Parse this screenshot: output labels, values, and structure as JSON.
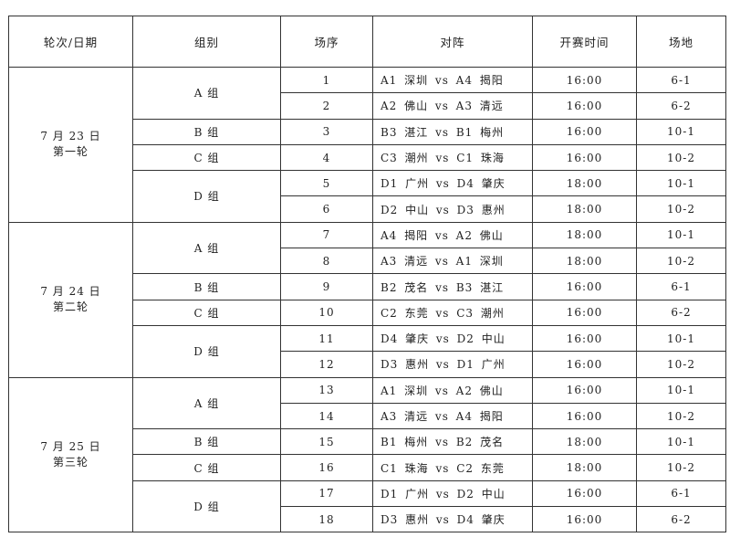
{
  "headers": [
    "轮次/日期",
    "组别",
    "场序",
    "对阵",
    "开赛时间",
    "场地"
  ],
  "rounds": [
    {
      "date": "7 月 23 日",
      "round": "第一轮",
      "groups": [
        {
          "group": "A 组",
          "matches": [
            {
              "no": "1",
              "match": "A1 深圳 vs A4 揭阳",
              "time": "16:00",
              "venue": "6-1"
            },
            {
              "no": "2",
              "match": "A2 佛山 vs A3 清远",
              "time": "16:00",
              "venue": "6-2"
            }
          ]
        },
        {
          "group": "B 组",
          "matches": [
            {
              "no": "3",
              "match": "B3 湛江 vs B1 梅州",
              "time": "16:00",
              "venue": "10-1"
            }
          ]
        },
        {
          "group": "C 组",
          "matches": [
            {
              "no": "4",
              "match": "C3 潮州 vs C1 珠海",
              "time": "16:00",
              "venue": "10-2"
            }
          ]
        },
        {
          "group": "D 组",
          "matches": [
            {
              "no": "5",
              "match": "D1 广州 vs D4 肇庆",
              "time": "18:00",
              "venue": "10-1"
            },
            {
              "no": "6",
              "match": "D2 中山 vs D3 惠州",
              "time": "18:00",
              "venue": "10-2"
            }
          ]
        }
      ]
    },
    {
      "date": "7 月 24 日",
      "round": "第二轮",
      "groups": [
        {
          "group": "A 组",
          "matches": [
            {
              "no": "7",
              "match": "A4 揭阳 vs A2 佛山",
              "time": "18:00",
              "venue": "10-1"
            },
            {
              "no": "8",
              "match": "A3 清远 vs A1 深圳",
              "time": "18:00",
              "venue": "10-2"
            }
          ]
        },
        {
          "group": "B 组",
          "matches": [
            {
              "no": "9",
              "match": "B2 茂名 vs B3 湛江",
              "time": "16:00",
              "venue": "6-1"
            }
          ]
        },
        {
          "group": "C 组",
          "matches": [
            {
              "no": "10",
              "match": "C2 东莞 vs C3 潮州",
              "time": "16:00",
              "venue": "6-2"
            }
          ]
        },
        {
          "group": "D 组",
          "matches": [
            {
              "no": "11",
              "match": "D4 肇庆 vs D2 中山",
              "time": "16:00",
              "venue": "10-1"
            },
            {
              "no": "12",
              "match": "D3 惠州 vs D1 广州",
              "time": "16:00",
              "venue": "10-2"
            }
          ]
        }
      ]
    },
    {
      "date": "7 月 25 日",
      "round": "第三轮",
      "groups": [
        {
          "group": "A 组",
          "matches": [
            {
              "no": "13",
              "match": "A1 深圳 vs A2 佛山",
              "time": "16:00",
              "venue": "10-1"
            },
            {
              "no": "14",
              "match": "A3 清远 vs A4 揭阳",
              "time": "16:00",
              "venue": "10-2"
            }
          ]
        },
        {
          "group": "B 组",
          "matches": [
            {
              "no": "15",
              "match": "B1 梅州 vs B2 茂名",
              "time": "18:00",
              "venue": "10-1"
            }
          ]
        },
        {
          "group": "C 组",
          "matches": [
            {
              "no": "16",
              "match": "C1 珠海 vs C2 东莞",
              "time": "18:00",
              "venue": "10-2"
            }
          ]
        },
        {
          "group": "D 组",
          "matches": [
            {
              "no": "17",
              "match": "D1 广州 vs D2 中山",
              "time": "16:00",
              "venue": "6-1"
            },
            {
              "no": "18",
              "match": "D3 惠州 vs D4 肇庆",
              "time": "16:00",
              "venue": "6-2"
            }
          ]
        }
      ]
    }
  ]
}
